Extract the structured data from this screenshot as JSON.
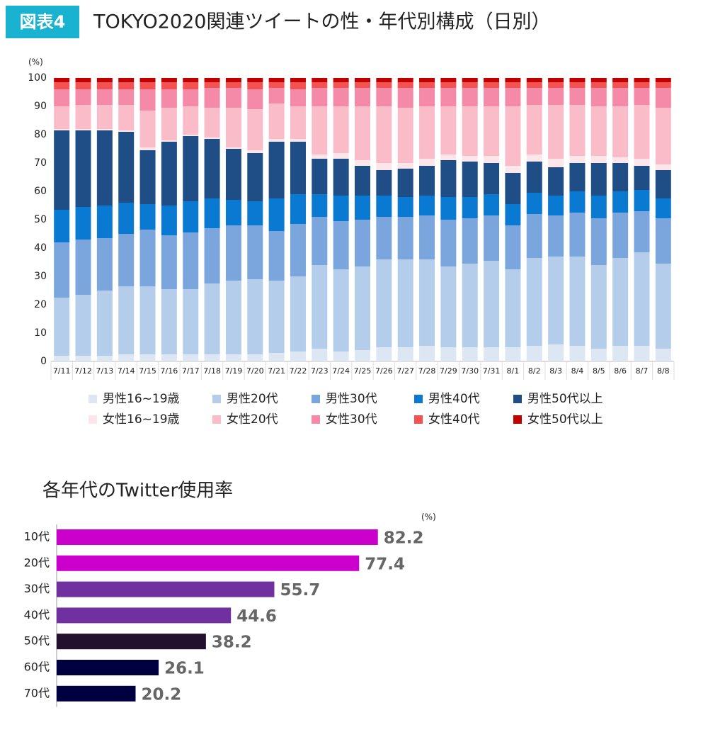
{
  "header": {
    "badge": "図表4"
  },
  "chart_data": [
    {
      "type": "stacked_bar",
      "title": "TOKYO2020関連ツイートの性・年代別構成（日別）",
      "y_unit": "(%)",
      "categories": [
        "7/11",
        "7/12",
        "7/13",
        "7/14",
        "7/15",
        "7/16",
        "7/17",
        "7/18",
        "7/19",
        "7/20",
        "7/21",
        "7/22",
        "7/23",
        "7/24",
        "7/25",
        "7/26",
        "7/27",
        "7/28",
        "7/29",
        "7/30",
        "7/31",
        "8/1",
        "8/2",
        "8/3",
        "8/4",
        "8/5",
        "8/6",
        "8/7",
        "8/8"
      ],
      "ylim": [
        0,
        100
      ],
      "yticks": [
        0,
        10,
        20,
        30,
        40,
        50,
        60,
        70,
        80,
        90,
        100
      ],
      "grid": false,
      "series": [
        {
          "name": "男性16~19歳",
          "color": "#dde7f3",
          "values": [
            2,
            2,
            2,
            2.5,
            2.5,
            2.5,
            2.5,
            2.5,
            2.5,
            2.5,
            3,
            3.5,
            4.5,
            3.5,
            4,
            5,
            5,
            5.5,
            5,
            5,
            5,
            5,
            5.5,
            6,
            5.5,
            4.5,
            5.5,
            5.5,
            4.5
          ]
        },
        {
          "name": "男性20代",
          "color": "#b4cdea",
          "values": [
            20.5,
            21.5,
            23,
            24,
            24,
            23,
            23,
            25,
            26,
            26.5,
            25.5,
            26.5,
            29.5,
            29,
            29.5,
            31,
            31,
            30.5,
            28.5,
            29.5,
            30.5,
            27.5,
            31,
            31,
            31.5,
            29.5,
            31,
            33,
            30
          ]
        },
        {
          "name": "男性30代",
          "color": "#7ba5dd",
          "values": [
            19.5,
            19.5,
            18.5,
            18.5,
            20,
            19,
            20,
            19.5,
            19.5,
            19,
            17.5,
            18.5,
            17,
            17,
            16.5,
            15,
            15,
            15.5,
            16.5,
            16,
            16,
            15.5,
            15.5,
            14.5,
            15.5,
            16.5,
            16,
            14.5,
            16
          ]
        },
        {
          "name": "男性40代",
          "color": "#0a79d1",
          "values": [
            11.5,
            11.5,
            11.5,
            11,
            9,
            10.5,
            11,
            10.5,
            9,
            8.5,
            11.5,
            10.5,
            8,
            9,
            8.5,
            7.5,
            7,
            7,
            8,
            7.5,
            7.5,
            7.5,
            7.5,
            7,
            7.5,
            8,
            7.5,
            7.5,
            7
          ]
        },
        {
          "name": "男性50代以上",
          "color": "#1f4d85",
          "values": [
            28,
            27,
            26.5,
            25,
            19,
            22.5,
            23,
            21,
            18,
            17,
            20,
            18.5,
            12.5,
            13,
            10.5,
            9,
            10,
            10.5,
            13,
            12.5,
            11,
            11,
            11,
            10,
            10,
            11.5,
            10,
            8.5,
            10
          ]
        },
        {
          "name": "女性16~19歳",
          "color": "#fde6e9",
          "values": [
            0.5,
            0.5,
            0.5,
            0.5,
            1,
            0.5,
            0.5,
            0.5,
            0.5,
            1,
            1,
            1,
            1.5,
            2,
            2,
            2.5,
            2,
            2.5,
            2,
            2,
            2.5,
            2.5,
            2.5,
            3,
            2.5,
            2.5,
            2,
            2.5,
            2
          ]
        },
        {
          "name": "女性20代",
          "color": "#fbbcc9",
          "values": [
            8,
            8.5,
            8.5,
            9,
            13,
            11.5,
            10,
            10.5,
            14,
            14.5,
            12.5,
            11.5,
            17,
            16.5,
            19,
            20,
            19.5,
            18.5,
            17,
            17.5,
            17.5,
            21,
            17.5,
            19,
            18,
            17.5,
            18,
            19,
            20
          ]
        },
        {
          "name": "女性30代",
          "color": "#f58aa8",
          "values": [
            6,
            5.5,
            5.5,
            5.5,
            7.5,
            6.5,
            6,
            7,
            7,
            7,
            5.5,
            6,
            6.5,
            6.5,
            6.5,
            6.5,
            7,
            6.5,
            6.5,
            6.5,
            6.5,
            6.5,
            6,
            6,
            6,
            6.5,
            6.5,
            6,
            7
          ]
        },
        {
          "name": "女性40代",
          "color": "#f25252",
          "values": [
            2.5,
            2.5,
            2.5,
            2.5,
            2.5,
            2.5,
            2.5,
            2,
            2,
            2.5,
            2,
            2.5,
            2,
            2,
            2,
            2,
            2,
            2,
            2,
            2,
            2,
            2,
            2,
            2,
            2,
            2,
            2,
            2,
            2
          ]
        },
        {
          "name": "女性50代以上",
          "color": "#c00000",
          "values": [
            1.5,
            1.5,
            1.5,
            1.5,
            1.5,
            1.5,
            1.5,
            1.5,
            1.5,
            1.5,
            1.5,
            1.5,
            1.5,
            1.5,
            1.5,
            1.5,
            1.5,
            1.5,
            1.5,
            1.5,
            1.5,
            1.5,
            1.5,
            1.5,
            1.5,
            1.5,
            1.5,
            1.5,
            1.5
          ]
        }
      ]
    },
    {
      "type": "horizontal_bar",
      "title": "各年代のTwitter使用率",
      "x_unit": "(%)",
      "categories": [
        "10代",
        "20代",
        "30代",
        "40代",
        "50代",
        "60代",
        "70代"
      ],
      "values": [
        82.2,
        77.4,
        55.7,
        44.6,
        38.2,
        26.1,
        20.2
      ],
      "colors": [
        "#cc00cc",
        "#cc00cc",
        "#7030a0",
        "#7030a0",
        "#22102e",
        "#000040",
        "#000040"
      ],
      "xlim": [
        0,
        100
      ]
    }
  ]
}
